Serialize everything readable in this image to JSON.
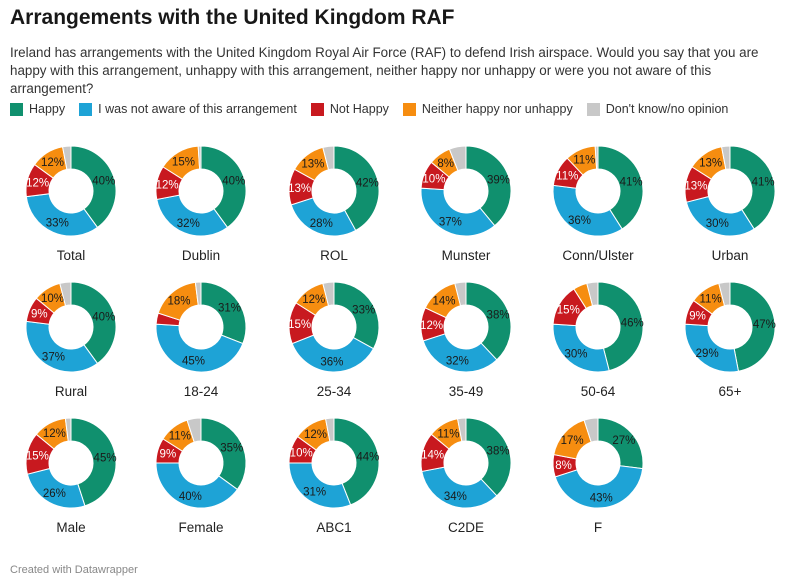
{
  "title": "Arrangements with the United Kingdom RAF",
  "subtitle": "Ireland has arrangements with the United Kingdom Royal Air Force (RAF) to defend Irish airspace. Would you say that you are happy with this arrangement, unhappy with this arrangement, neither happy nor unhappy or were you not aware of this arrangement?",
  "footer": "Created with Datawrapper",
  "chart_data": {
    "type": "pie",
    "variant": "donut",
    "unit": "%",
    "legend_placement": "top-left",
    "series": [
      {
        "name": "Happy",
        "color": "#10906e",
        "label_color": "#1a1a1a"
      },
      {
        "name": "I was not aware of this arrangement",
        "color": "#1ea3d6",
        "label_color": "#1a1a1a"
      },
      {
        "name": "Not Happy",
        "color": "#c8191f",
        "label_color": "#ffffff"
      },
      {
        "name": "Neither happy nor unhappy",
        "color": "#f68d10",
        "label_color": "#1a1a1a"
      },
      {
        "name": "Don't know/no opinion",
        "color": "#c8c8c8",
        "label_color": "#1a1a1a"
      }
    ],
    "charts": [
      {
        "label": "Total",
        "values": [
          40,
          33,
          12,
          12,
          3
        ]
      },
      {
        "label": "Dublin",
        "values": [
          40,
          32,
          12,
          15,
          1
        ]
      },
      {
        "label": "ROL",
        "values": [
          42,
          28,
          13,
          13,
          4
        ]
      },
      {
        "label": "Munster",
        "values": [
          39,
          37,
          10,
          8,
          6
        ]
      },
      {
        "label": "Conn/Ulster",
        "values": [
          41,
          36,
          11,
          11,
          1
        ]
      },
      {
        "label": "Urban",
        "values": [
          41,
          30,
          13,
          13,
          3
        ]
      },
      {
        "label": "Rural",
        "values": [
          40,
          37,
          9,
          10,
          4
        ]
      },
      {
        "label": "18-24",
        "values": [
          31,
          45,
          4,
          18,
          2
        ]
      },
      {
        "label": "25-34",
        "values": [
          33,
          36,
          15,
          12,
          4
        ]
      },
      {
        "label": "35-49",
        "values": [
          38,
          32,
          12,
          14,
          4
        ]
      },
      {
        "label": "50-64",
        "values": [
          46,
          30,
          15,
          5,
          4
        ]
      },
      {
        "label": "65+",
        "values": [
          47,
          29,
          9,
          11,
          4
        ]
      },
      {
        "label": "Male",
        "values": [
          45,
          26,
          15,
          12,
          2
        ]
      },
      {
        "label": "Female",
        "values": [
          35,
          40,
          9,
          11,
          5
        ]
      },
      {
        "label": "ABC1",
        "values": [
          44,
          31,
          10,
          12,
          3
        ]
      },
      {
        "label": "C2DE",
        "values": [
          38,
          34,
          14,
          11,
          3
        ]
      },
      {
        "label": "F",
        "values": [
          27,
          43,
          8,
          17,
          5
        ]
      }
    ]
  }
}
